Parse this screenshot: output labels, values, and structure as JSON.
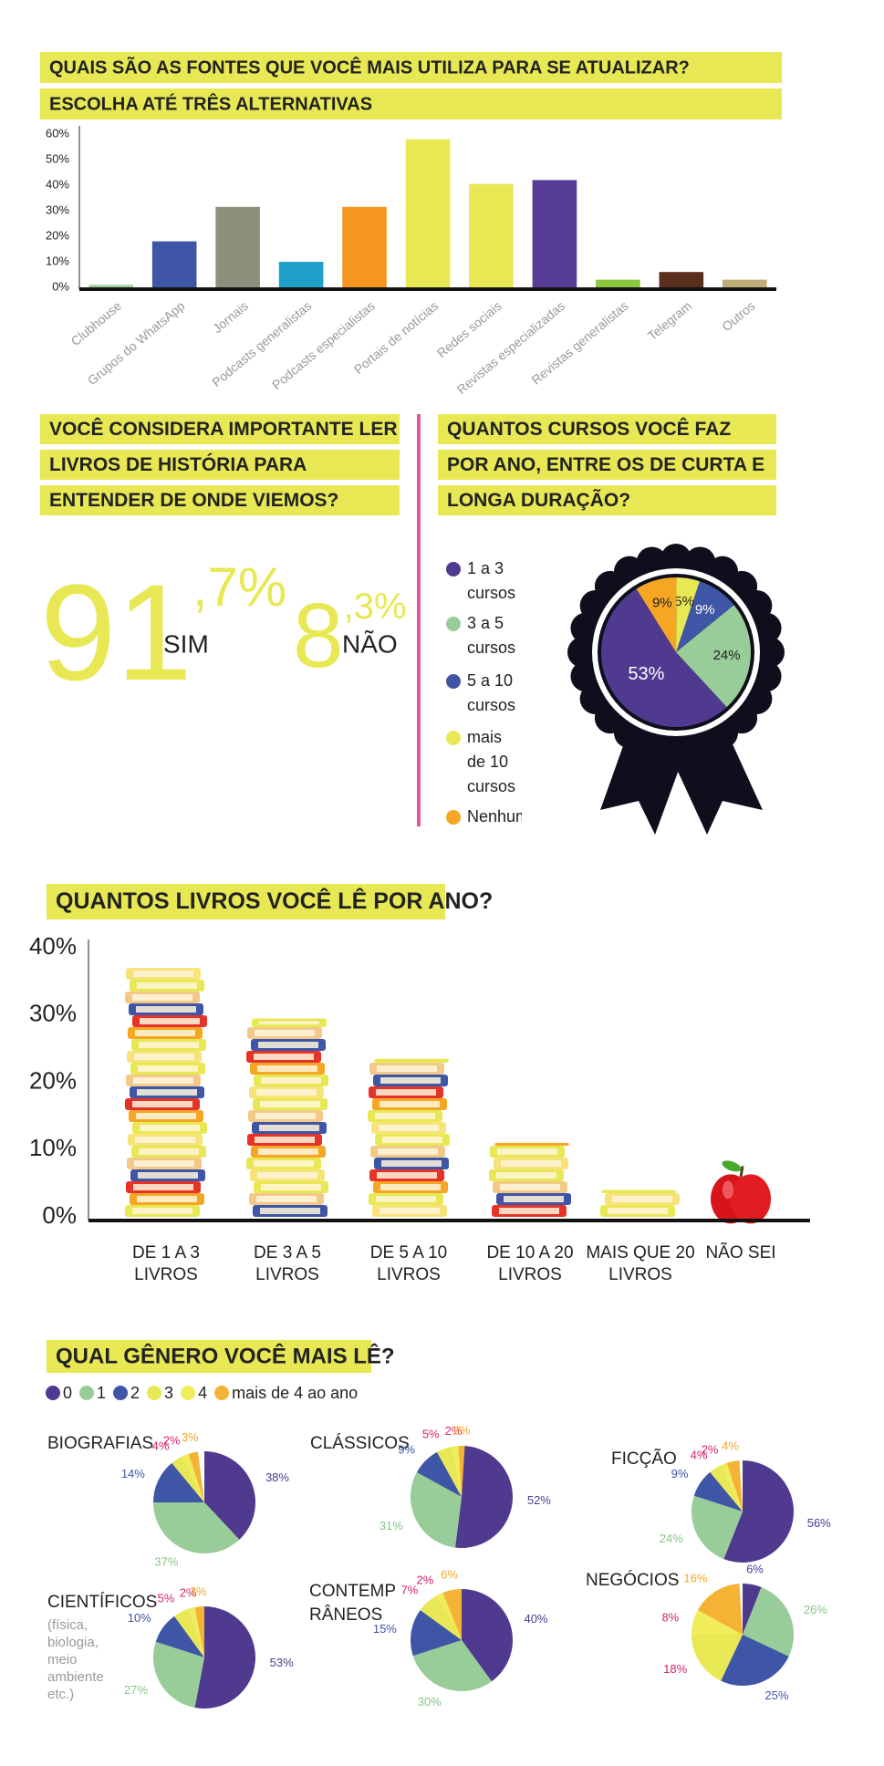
{
  "chart_data": [
    {
      "type": "bar",
      "title": [
        "QUAIS SÃO AS FONTES QUE VOCÊ MAIS UTILIZA PARA SE ATUALIZAR?",
        "ESCOLHA ATÉ TRÊS ALTERNATIVAS"
      ],
      "categories": [
        "Clubhouse",
        "Grupos do WhatsApp",
        "Jornais",
        "Podcasts generalistas",
        "Podcasts especialistas",
        "Portais de notícias",
        "Redes sociais",
        "Revistas especializadas",
        "Revistas generalistas",
        "Telegram",
        "Outros"
      ],
      "values": [
        1,
        18,
        31.5,
        10,
        31.5,
        58,
        40.5,
        42,
        3,
        6,
        3
      ],
      "colors": [
        "#9fd0a4",
        "#3f56a6",
        "#8f8f7e",
        "#1ea0c8",
        "#f5961e",
        "#e8e855",
        "#e8e855",
        "#563c94",
        "#8cc63f",
        "#5a2e1e",
        "#c2ad7a"
      ],
      "ylim": [
        0,
        60
      ],
      "yticks": [
        {
          "value": 0,
          "label": "0%"
        },
        {
          "value": 10,
          "label": "10%"
        },
        {
          "value": 20,
          "label": "20%"
        },
        {
          "value": 30,
          "label": "30%"
        },
        {
          "value": 40,
          "label": "40%"
        },
        {
          "value": 50,
          "label": "50%"
        },
        {
          "value": 60,
          "label": "60%"
        }
      ]
    },
    {
      "type": "stat",
      "title": [
        "VOCÊ CONSIDERA IMPORTANTE LER",
        "LIVROS DE HISTÓRIA PARA",
        "ENTENDER DE ONDE VIEMOS?"
      ],
      "categories": [
        "SIM",
        "NÃO"
      ],
      "values": [
        91.7,
        8.3
      ],
      "value_labels": [
        "91,7%",
        "8,3%"
      ],
      "color": "#e8e855"
    },
    {
      "type": "pie",
      "title": [
        "QUANTOS CURSOS VOCÊ FAZ",
        "POR ANO, ENTRE OS DE CURTA E",
        "LONGA DURAÇÃO?"
      ],
      "categories": [
        "1 a 3 cursos",
        "3 a 5 cursos",
        "5 a 10 cursos",
        "mais de 10 cursos",
        "Nenhum"
      ],
      "values": [
        53,
        24,
        9,
        5,
        9
      ],
      "value_labels": [
        "53%",
        "24%",
        "9%",
        "5%",
        "9%"
      ],
      "colors": [
        "#4f3a8f",
        "#98cc98",
        "#3f56a6",
        "#e8e855",
        "#f5a623"
      ]
    },
    {
      "type": "pictograph",
      "title": "QUANTOS LIVROS VOCÊ LÊ POR ANO?",
      "categories": [
        "DE 1 A 3 LIVROS",
        "DE 3 A 5 LIVROS",
        "DE 5 A 10 LIVROS",
        "DE 10 A 20 LIVROS",
        "MAIS QUE 20 LIVROS",
        "NÃO SEI"
      ],
      "values": [
        37,
        29.5,
        23.5,
        11,
        4,
        7
      ],
      "ylim": [
        0,
        40
      ],
      "yticks": [
        {
          "value": 0,
          "label": "0%"
        },
        {
          "value": 10,
          "label": "10%"
        },
        {
          "value": 20,
          "label": "20%"
        },
        {
          "value": 30,
          "label": "30%"
        },
        {
          "value": 40,
          "label": "40%"
        }
      ]
    },
    {
      "type": "pie-grid",
      "title": "QUAL GÊNERO VOCÊ MAIS LÊ?",
      "categories": [
        "0",
        "1",
        "2",
        "3",
        "4",
        "mais de 4 ao ano"
      ],
      "colors": [
        "#4f3a8f",
        "#98cc98",
        "#3f56a6",
        "#e8e855",
        "#f0ec5a",
        "#f5b335"
      ],
      "label_colors": [
        "#4f3a8f",
        "#86c586",
        "#3f56a6",
        "#d6246e",
        "#d6246e",
        "#f5a623"
      ],
      "panels": [
        {
          "title": "BIOGRAFIAS",
          "values": [
            38,
            37,
            14,
            4,
            2,
            3
          ],
          "value_labels": [
            "38%",
            "37%",
            "14%",
            "4%",
            "2%",
            "3%"
          ]
        },
        {
          "title": "CLÁSSICOS",
          "values": [
            52,
            31,
            9,
            5,
            2,
            2
          ],
          "value_labels": [
            "52%",
            "31%",
            "9%",
            "5%",
            "2%",
            "2%"
          ]
        },
        {
          "title": "FICÇÃO",
          "values": [
            56,
            24,
            9,
            4,
            2,
            4
          ],
          "value_labels": [
            "56%",
            "24%",
            "9%",
            "4%",
            "2%",
            "4%"
          ]
        },
        {
          "title": "CIENTÍFICOS",
          "note": "(física, biologia, meio ambiente etc.)",
          "values": [
            53,
            27,
            10,
            5,
            2,
            3
          ],
          "value_labels": [
            "53%",
            "27%",
            "10%",
            "5%",
            "2%",
            "3%"
          ]
        },
        {
          "title": "CONTEMPO RÂNEOS",
          "values": [
            40,
            30,
            15,
            7,
            2,
            6
          ],
          "value_labels": [
            "40%",
            "30%",
            "15%",
            "7%",
            "2%",
            "6%"
          ]
        },
        {
          "title": "NEGÓCIOS",
          "values": [
            6,
            26,
            25,
            18,
            8,
            16
          ],
          "value_labels": [
            "6%",
            "26%",
            "25%",
            "18%",
            "8%",
            "16%"
          ]
        }
      ]
    }
  ]
}
